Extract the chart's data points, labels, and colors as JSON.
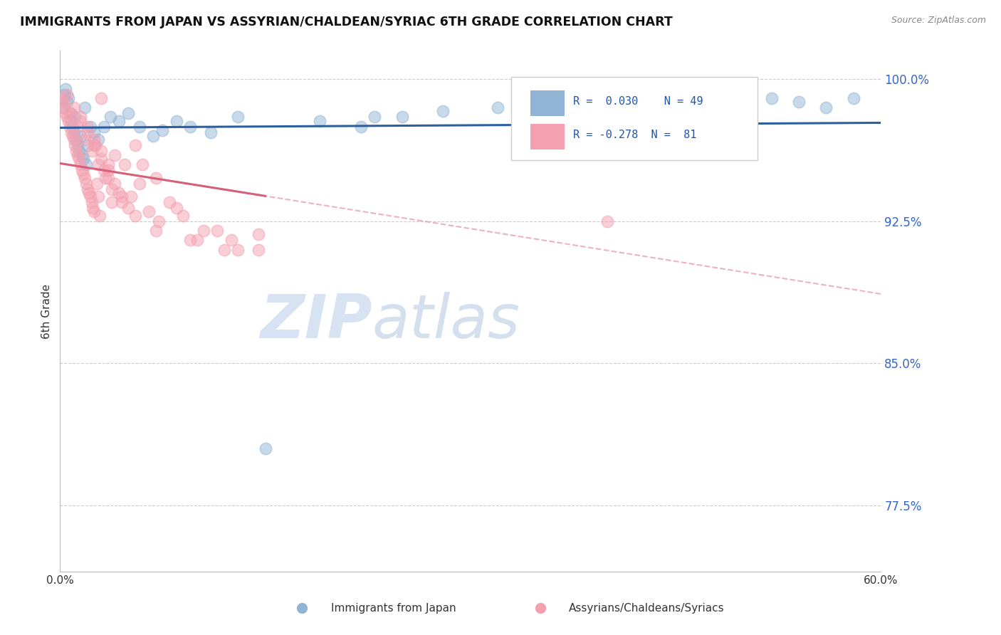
{
  "title": "IMMIGRANTS FROM JAPAN VS ASSYRIAN/CHALDEAN/SYRIAC 6TH GRADE CORRELATION CHART",
  "source": "Source: ZipAtlas.com",
  "ylabel": "6th Grade",
  "xlim": [
    0.0,
    60.0
  ],
  "ylim": [
    74.0,
    101.5
  ],
  "yticks": [
    77.5,
    85.0,
    92.5,
    100.0
  ],
  "ytick_labels": [
    "77.5%",
    "85.0%",
    "92.5%",
    "100.0%"
  ],
  "legend_japan_r": "0.030",
  "legend_japan_n": "49",
  "legend_assyrian_r": "-0.278",
  "legend_assyrian_n": "81",
  "blue_color": "#92b4d4",
  "pink_color": "#f4a0b0",
  "blue_line_color": "#2c5f9e",
  "pink_line_color": "#d4607a",
  "pink_dash_color": "#e8a0b0",
  "japan_x": [
    0.2,
    0.3,
    0.4,
    0.5,
    0.6,
    0.7,
    0.8,
    0.9,
    1.0,
    1.1,
    1.2,
    1.3,
    1.4,
    1.5,
    1.6,
    1.7,
    1.8,
    1.9,
    2.0,
    2.2,
    2.5,
    2.8,
    3.2,
    3.7,
    4.3,
    5.0,
    5.8,
    6.8,
    7.5,
    8.5,
    9.5,
    11.0,
    13.0,
    15.0,
    19.0,
    22.0,
    25.0,
    28.0,
    32.0,
    36.0,
    40.0,
    44.0,
    48.0,
    50.0,
    52.0,
    54.0,
    56.0,
    58.0,
    23.0
  ],
  "japan_y": [
    98.5,
    99.2,
    99.5,
    98.8,
    99.0,
    98.2,
    97.8,
    97.5,
    97.2,
    98.0,
    96.8,
    96.5,
    96.2,
    97.0,
    96.0,
    95.8,
    98.5,
    95.5,
    96.5,
    97.5,
    97.2,
    96.8,
    97.5,
    98.0,
    97.8,
    98.2,
    97.5,
    97.0,
    97.3,
    97.8,
    97.5,
    97.2,
    98.0,
    80.5,
    97.8,
    97.5,
    98.0,
    98.3,
    98.5,
    98.8,
    99.0,
    99.2,
    99.5,
    99.3,
    99.0,
    98.8,
    98.5,
    99.0,
    98.0
  ],
  "assyrian_x": [
    0.1,
    0.2,
    0.3,
    0.4,
    0.5,
    0.6,
    0.7,
    0.8,
    0.9,
    1.0,
    1.1,
    1.2,
    1.3,
    1.4,
    1.5,
    1.6,
    1.7,
    1.8,
    1.9,
    2.0,
    2.1,
    2.2,
    2.3,
    2.4,
    2.5,
    2.6,
    2.7,
    2.8,
    2.9,
    3.0,
    3.2,
    3.5,
    3.8,
    4.0,
    4.3,
    4.7,
    5.2,
    5.8,
    6.5,
    7.2,
    8.0,
    9.0,
    10.0,
    11.5,
    13.0,
    1.5,
    2.0,
    2.5,
    3.0,
    3.5,
    0.5,
    1.0,
    1.5,
    2.0,
    2.5,
    3.0,
    3.5,
    4.0,
    4.5,
    5.0,
    5.5,
    6.0,
    7.0,
    8.5,
    10.5,
    12.5,
    14.5,
    0.8,
    1.3,
    1.8,
    2.3,
    2.8,
    3.3,
    3.8,
    4.5,
    5.5,
    7.0,
    9.5,
    12.0,
    14.5,
    40.0
  ],
  "assyrian_y": [
    99.0,
    98.8,
    98.5,
    98.2,
    98.0,
    97.8,
    97.5,
    97.2,
    97.0,
    96.8,
    96.5,
    96.2,
    96.0,
    95.8,
    95.5,
    95.2,
    95.0,
    94.8,
    94.5,
    94.2,
    94.0,
    93.8,
    93.5,
    93.2,
    93.0,
    96.5,
    94.5,
    93.8,
    92.8,
    99.0,
    95.2,
    94.8,
    93.5,
    96.0,
    94.0,
    95.5,
    93.8,
    94.5,
    93.0,
    92.5,
    93.5,
    92.8,
    91.5,
    92.0,
    91.0,
    98.0,
    97.5,
    96.8,
    96.2,
    95.5,
    99.2,
    98.5,
    97.8,
    97.2,
    96.5,
    95.8,
    95.2,
    94.5,
    93.8,
    93.2,
    96.5,
    95.5,
    94.8,
    93.2,
    92.0,
    91.5,
    91.0,
    98.2,
    97.5,
    96.8,
    96.2,
    95.5,
    94.8,
    94.2,
    93.5,
    92.8,
    92.0,
    91.5,
    91.0,
    91.8,
    92.5
  ]
}
